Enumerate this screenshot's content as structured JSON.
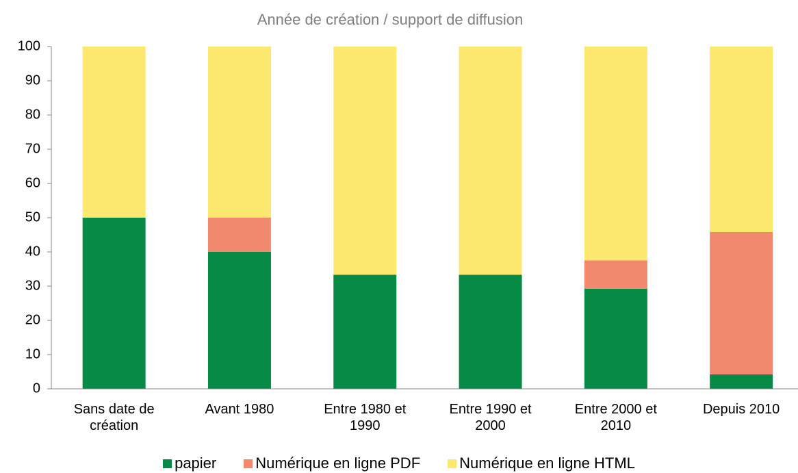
{
  "chart_data": {
    "type": "stacked_bar",
    "title": "Année de création / support de diffusion",
    "categories": [
      "Sans date de création",
      "Avant 1980",
      "Entre 1980 et 1990",
      "Entre 1990 et 2000",
      "Entre 2000 et 2010",
      "Depuis 2010"
    ],
    "series": [
      {
        "name": "papier",
        "color": "#078a45",
        "values": [
          50,
          40,
          33.3,
          33.3,
          29.2,
          4.2
        ]
      },
      {
        "name": "Numérique en ligne PDF",
        "color": "#f0896e",
        "values": [
          0,
          10,
          0,
          0,
          8.3,
          41.6
        ]
      },
      {
        "name": "Numérique en ligne HTML",
        "color": "#fde870",
        "values": [
          50,
          50,
          66.7,
          66.7,
          62.5,
          54.2
        ]
      }
    ],
    "ylim": [
      0,
      100
    ],
    "yticks": [
      0,
      10,
      20,
      30,
      40,
      50,
      60,
      70,
      80,
      90,
      100
    ],
    "legend": "bottom"
  }
}
